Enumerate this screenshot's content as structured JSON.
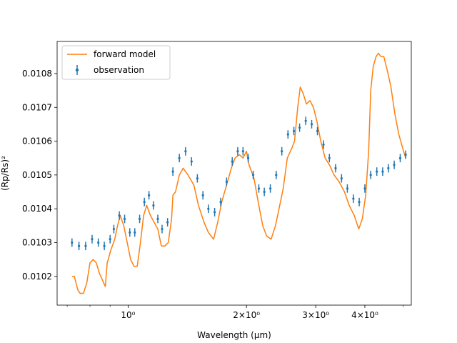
{
  "chart_data": {
    "type": "line",
    "xscale": "log",
    "xlabel": "Wavelength (μm)",
    "ylabel": "(Rp/Rs)²",
    "xlim": [
      0.66,
      5.25
    ],
    "ylim": [
      0.010115,
      0.010895
    ],
    "x_ticks": [
      {
        "value": 1.0,
        "label": "10⁰"
      },
      {
        "value": 2.0,
        "label": "2×10⁰"
      },
      {
        "value": 3.0,
        "label": "3×10⁰"
      },
      {
        "value": 4.0,
        "label": "4×10⁰"
      }
    ],
    "x_minor_ticks": [
      0.7,
      0.8,
      0.9,
      5.0
    ],
    "y_ticks": [
      {
        "value": 0.0102,
        "label": "0.0102"
      },
      {
        "value": 0.0103,
        "label": "0.0103"
      },
      {
        "value": 0.0104,
        "label": "0.0104"
      },
      {
        "value": 0.0105,
        "label": "0.0105"
      },
      {
        "value": 0.0106,
        "label": "0.0106"
      },
      {
        "value": 0.0107,
        "label": "0.0107"
      },
      {
        "value": 0.0108,
        "label": "0.0108"
      }
    ],
    "legend": {
      "position": "upper-left",
      "entries": [
        {
          "label": "forward model",
          "color": "#ff7f0e",
          "marker": "line"
        },
        {
          "label": "observation",
          "color": "#1f77b4",
          "marker": "errorbar"
        }
      ]
    },
    "model": {
      "name": "forward model",
      "color": "#ff7f0e",
      "points": [
        [
          0.72,
          0.0102
        ],
        [
          0.73,
          0.0102
        ],
        [
          0.745,
          0.01016
        ],
        [
          0.755,
          0.01015
        ],
        [
          0.77,
          0.01015
        ],
        [
          0.785,
          0.01018
        ],
        [
          0.8,
          0.01024
        ],
        [
          0.815,
          0.01025
        ],
        [
          0.83,
          0.01024
        ],
        [
          0.845,
          0.01021
        ],
        [
          0.86,
          0.01019
        ],
        [
          0.875,
          0.01017
        ],
        [
          0.885,
          0.01024
        ],
        [
          0.905,
          0.01028
        ],
        [
          0.925,
          0.01031
        ],
        [
          0.94,
          0.01035
        ],
        [
          0.955,
          0.01038
        ],
        [
          0.975,
          0.01035
        ],
        [
          0.995,
          0.0103
        ],
        [
          1.015,
          0.01025
        ],
        [
          1.035,
          0.01023
        ],
        [
          1.055,
          0.01023
        ],
        [
          1.075,
          0.0103
        ],
        [
          1.095,
          0.01038
        ],
        [
          1.115,
          0.01041
        ],
        [
          1.14,
          0.01038
        ],
        [
          1.165,
          0.01036
        ],
        [
          1.19,
          0.01034
        ],
        [
          1.215,
          0.01029
        ],
        [
          1.24,
          0.01029
        ],
        [
          1.265,
          0.0103
        ],
        [
          1.29,
          0.01037
        ],
        [
          1.3,
          0.01044
        ],
        [
          1.32,
          0.01045
        ],
        [
          1.35,
          0.0105
        ],
        [
          1.38,
          0.01052
        ],
        [
          1.42,
          0.0105
        ],
        [
          1.47,
          0.01047
        ],
        [
          1.51,
          0.01041
        ],
        [
          1.56,
          0.01036
        ],
        [
          1.6,
          0.01033
        ],
        [
          1.65,
          0.01031
        ],
        [
          1.69,
          0.01036
        ],
        [
          1.73,
          0.01042
        ],
        [
          1.78,
          0.01047
        ],
        [
          1.83,
          0.01052
        ],
        [
          1.87,
          0.01055
        ],
        [
          1.92,
          0.01056
        ],
        [
          1.96,
          0.01055
        ],
        [
          2.0,
          0.01057
        ],
        [
          2.03,
          0.01053
        ],
        [
          2.09,
          0.01049
        ],
        [
          2.15,
          0.01041
        ],
        [
          2.2,
          0.01035
        ],
        [
          2.25,
          0.01032
        ],
        [
          2.31,
          0.01031
        ],
        [
          2.37,
          0.01035
        ],
        [
          2.42,
          0.0104
        ],
        [
          2.48,
          0.01046
        ],
        [
          2.54,
          0.01055
        ],
        [
          2.61,
          0.01058
        ],
        [
          2.65,
          0.0106
        ],
        [
          2.7,
          0.0107
        ],
        [
          2.74,
          0.01076
        ],
        [
          2.79,
          0.01074
        ],
        [
          2.84,
          0.01071
        ],
        [
          2.9,
          0.01072
        ],
        [
          2.96,
          0.0107
        ],
        [
          3.02,
          0.01066
        ],
        [
          3.09,
          0.0106
        ],
        [
          3.17,
          0.01055
        ],
        [
          3.25,
          0.01053
        ],
        [
          3.34,
          0.0105
        ],
        [
          3.44,
          0.01048
        ],
        [
          3.55,
          0.01045
        ],
        [
          3.65,
          0.01041
        ],
        [
          3.76,
          0.01038
        ],
        [
          3.86,
          0.01034
        ],
        [
          3.94,
          0.01037
        ],
        [
          4.02,
          0.01044
        ],
        [
          4.09,
          0.01057
        ],
        [
          4.14,
          0.01075
        ],
        [
          4.2,
          0.01082
        ],
        [
          4.27,
          0.01085
        ],
        [
          4.33,
          0.01086
        ],
        [
          4.4,
          0.01085
        ],
        [
          4.47,
          0.01085
        ],
        [
          4.56,
          0.01081
        ],
        [
          4.66,
          0.01076
        ],
        [
          4.77,
          0.01068
        ],
        [
          4.88,
          0.01062
        ],
        [
          4.99,
          0.01058
        ],
        [
          5.08,
          0.01055
        ]
      ]
    },
    "observation": {
      "name": "observation",
      "color": "#1f77b4",
      "error": 1.25e-05,
      "points": [
        [
          0.72,
          0.0103
        ],
        [
          0.75,
          0.01029
        ],
        [
          0.78,
          0.01029
        ],
        [
          0.81,
          0.01031
        ],
        [
          0.84,
          0.0103
        ],
        [
          0.87,
          0.01029
        ],
        [
          0.9,
          0.01031
        ],
        [
          0.92,
          0.01034
        ],
        [
          0.95,
          0.01038
        ],
        [
          0.98,
          0.01037
        ],
        [
          1.01,
          0.01033
        ],
        [
          1.04,
          0.01033
        ],
        [
          1.07,
          0.01037
        ],
        [
          1.1,
          0.01042
        ],
        [
          1.13,
          0.01044
        ],
        [
          1.16,
          0.01041
        ],
        [
          1.19,
          0.01037
        ],
        [
          1.22,
          0.01034
        ],
        [
          1.26,
          0.01036
        ],
        [
          1.3,
          0.01051
        ],
        [
          1.35,
          0.01055
        ],
        [
          1.4,
          0.01057
        ],
        [
          1.45,
          0.01054
        ],
        [
          1.5,
          0.01049
        ],
        [
          1.55,
          0.01044
        ],
        [
          1.6,
          0.0104
        ],
        [
          1.66,
          0.01039
        ],
        [
          1.72,
          0.01042
        ],
        [
          1.78,
          0.01048
        ],
        [
          1.84,
          0.01054
        ],
        [
          1.9,
          0.01057
        ],
        [
          1.96,
          0.01057
        ],
        [
          2.02,
          0.01055
        ],
        [
          2.08,
          0.0105
        ],
        [
          2.15,
          0.01046
        ],
        [
          2.22,
          0.01045
        ],
        [
          2.3,
          0.01046
        ],
        [
          2.38,
          0.0105
        ],
        [
          2.46,
          0.01057
        ],
        [
          2.55,
          0.01062
        ],
        [
          2.64,
          0.01063
        ],
        [
          2.73,
          0.01064
        ],
        [
          2.83,
          0.01066
        ],
        [
          2.93,
          0.01065
        ],
        [
          3.03,
          0.01063
        ],
        [
          3.14,
          0.01059
        ],
        [
          3.25,
          0.01055
        ],
        [
          3.37,
          0.01052
        ],
        [
          3.49,
          0.01049
        ],
        [
          3.61,
          0.01046
        ],
        [
          3.74,
          0.01043
        ],
        [
          3.87,
          0.01042
        ],
        [
          4.0,
          0.01046
        ],
        [
          4.14,
          0.0105
        ],
        [
          4.29,
          0.01051
        ],
        [
          4.44,
          0.01051
        ],
        [
          4.59,
          0.01052
        ],
        [
          4.75,
          0.01053
        ],
        [
          4.92,
          0.01055
        ],
        [
          5.08,
          0.01056
        ]
      ]
    }
  }
}
